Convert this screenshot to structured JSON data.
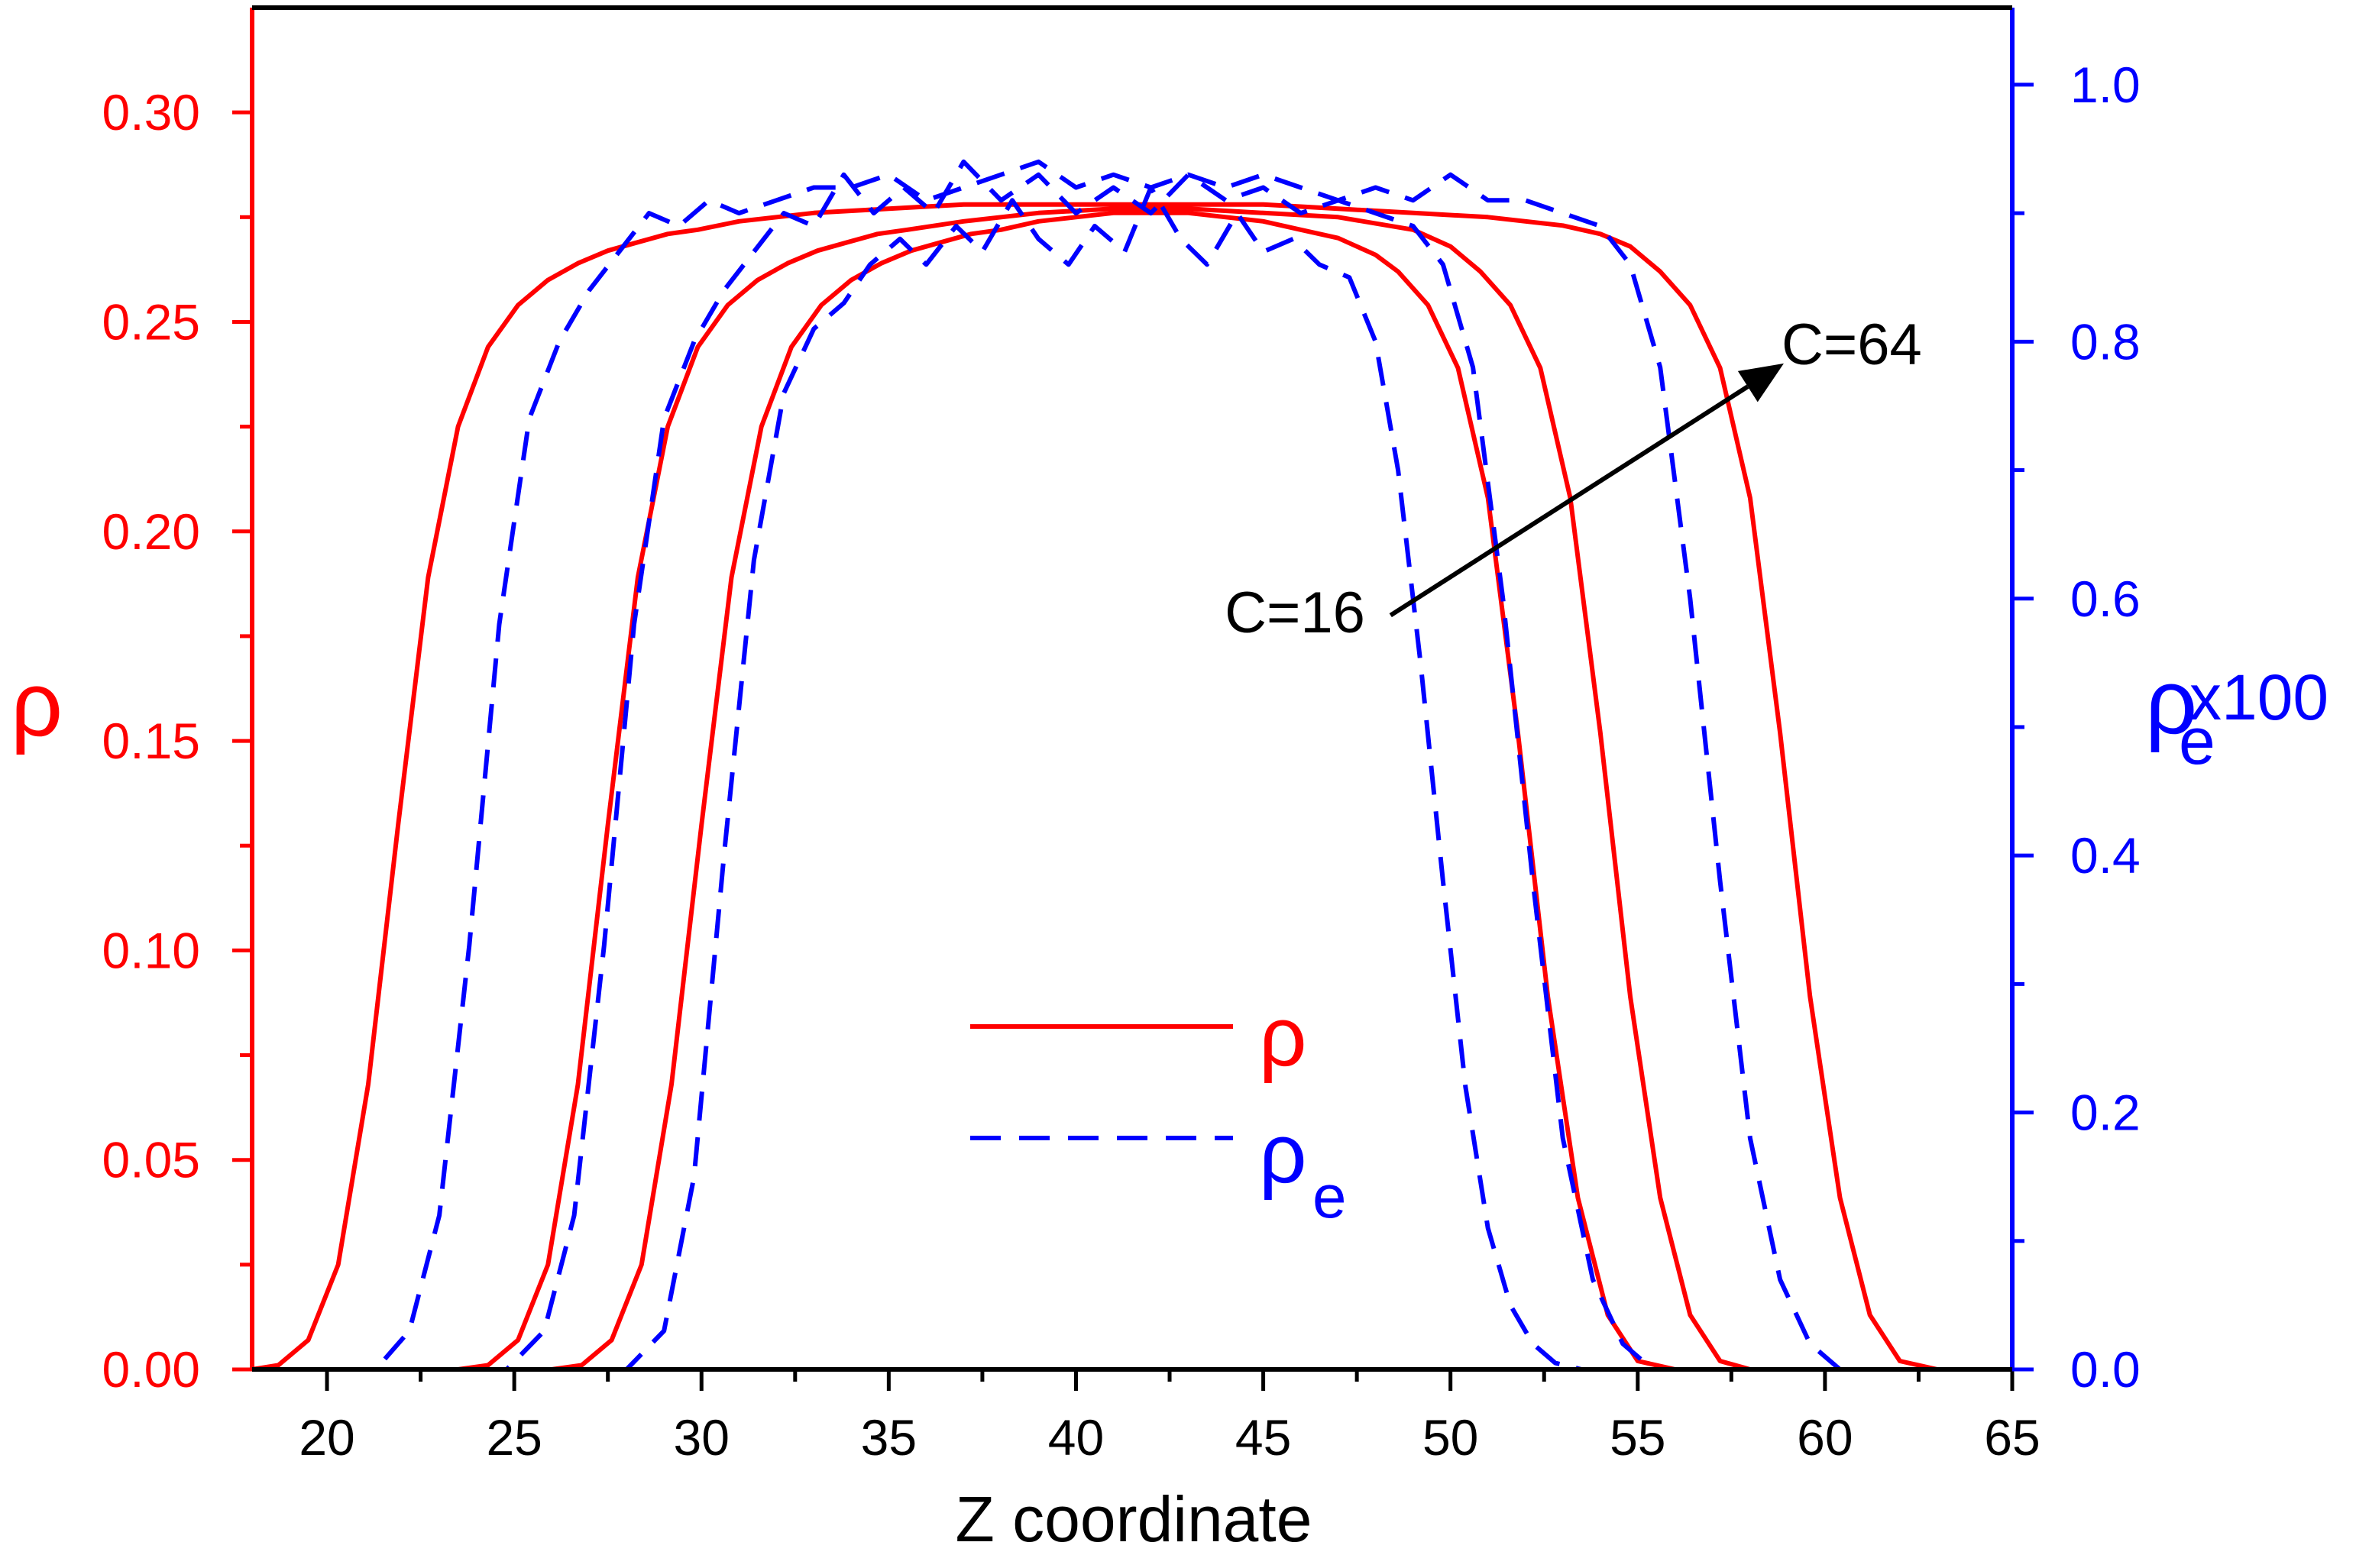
{
  "chart_data": {
    "type": "line",
    "title": "",
    "xlabel": "Z coordinate",
    "ylabel_left": "ρ",
    "ylabel_right_main": "ρ",
    "ylabel_right_sub": "e",
    "ylabel_right_suffix": "x100",
    "xlim": [
      18,
      65
    ],
    "ylim_left": [
      0,
      0.325
    ],
    "ylim_right": [
      0,
      1.06
    ],
    "x_ticks": [
      20,
      25,
      30,
      35,
      40,
      45,
      50,
      55,
      60,
      65
    ],
    "y_left_ticks": [
      0.0,
      0.05,
      0.1,
      0.15,
      0.2,
      0.25,
      0.3
    ],
    "y_left_tick_labels": [
      "0.00",
      "0.05",
      "0.10",
      "0.15",
      "0.20",
      "0.25",
      "0.30"
    ],
    "y_right_ticks": [
      0.0,
      0.2,
      0.4,
      0.6,
      0.8,
      1.0
    ],
    "y_right_tick_labels": [
      "0.0",
      "0.2",
      "0.4",
      "0.6",
      "0.8",
      "1.0"
    ],
    "colors": {
      "rho": "#ff0000",
      "rho_e": "#0000ff",
      "text": "#000000"
    },
    "legend": {
      "position": "bottom-center",
      "entries": [
        {
          "label": "ρ",
          "sub": "",
          "style": "solid",
          "color": "#ff0000"
        },
        {
          "label": "ρ",
          "sub": "e",
          "style": "dashed",
          "color": "#0000ff"
        }
      ]
    },
    "annotation": {
      "start_label": "C=16",
      "end_label": "C=64",
      "start": [
        48.4,
        0.587
      ],
      "end": [
        58.9,
        0.783
      ]
    },
    "series": [
      {
        "name": "ρ (C=16)",
        "axis": "left",
        "style": "solid",
        "color": "#ff0000",
        "x": [
          18,
          26,
          26.8,
          27.6,
          28.4,
          29.2,
          30,
          30.8,
          31.6,
          32.4,
          33.2,
          34,
          34.8,
          35.6,
          36.4,
          37.2,
          38,
          39,
          40,
          41,
          42,
          43,
          44,
          45,
          46,
          47,
          48,
          48.6,
          49.4,
          50.2,
          51,
          51.8,
          52.6,
          53.4,
          54.2,
          55,
          56,
          65
        ],
        "y": [
          0,
          0,
          0.001,
          0.007,
          0.025,
          0.068,
          0.13,
          0.189,
          0.225,
          0.244,
          0.254,
          0.26,
          0.264,
          0.267,
          0.269,
          0.271,
          0.272,
          0.274,
          0.275,
          0.276,
          0.276,
          0.276,
          0.275,
          0.274,
          0.272,
          0.27,
          0.266,
          0.262,
          0.254,
          0.239,
          0.208,
          0.152,
          0.089,
          0.041,
          0.013,
          0.002,
          0,
          0
        ]
      },
      {
        "name": "ρ (C=32)",
        "axis": "left",
        "style": "solid",
        "color": "#ff0000",
        "x": [
          18,
          23.5,
          24.3,
          25.1,
          25.9,
          26.7,
          27.5,
          28.3,
          29.1,
          29.9,
          30.7,
          31.5,
          32.3,
          33.1,
          33.9,
          34.7,
          35.5,
          37,
          39,
          41,
          43,
          45,
          47,
          49,
          50,
          50.8,
          51.6,
          52.4,
          53.2,
          54,
          54.8,
          55.6,
          56.4,
          57.2,
          58,
          59,
          65
        ],
        "y": [
          0,
          0,
          0.001,
          0.007,
          0.025,
          0.068,
          0.13,
          0.189,
          0.225,
          0.244,
          0.254,
          0.26,
          0.264,
          0.267,
          0.269,
          0.271,
          0.272,
          0.274,
          0.276,
          0.277,
          0.277,
          0.276,
          0.275,
          0.272,
          0.268,
          0.262,
          0.254,
          0.239,
          0.208,
          0.152,
          0.089,
          0.041,
          0.013,
          0.002,
          0,
          0,
          0
        ]
      },
      {
        "name": "ρ (C=64)",
        "axis": "left",
        "style": "solid",
        "color": "#ff0000",
        "x": [
          18,
          18.7,
          19.5,
          20.3,
          21.1,
          21.9,
          22.7,
          23.5,
          24.3,
          25.1,
          25.9,
          26.7,
          27.5,
          28.3,
          29.1,
          29.9,
          31,
          33,
          35,
          37,
          39,
          41,
          43,
          45,
          47,
          49,
          51,
          53,
          54,
          54.8,
          55.6,
          56.4,
          57.2,
          58,
          58.8,
          59.6,
          60.4,
          61.2,
          62,
          63,
          65
        ],
        "y": [
          0,
          0.001,
          0.007,
          0.025,
          0.068,
          0.13,
          0.189,
          0.225,
          0.244,
          0.254,
          0.26,
          0.264,
          0.267,
          0.269,
          0.271,
          0.272,
          0.274,
          0.276,
          0.277,
          0.278,
          0.278,
          0.278,
          0.278,
          0.278,
          0.277,
          0.276,
          0.275,
          0.273,
          0.271,
          0.268,
          0.262,
          0.254,
          0.239,
          0.208,
          0.152,
          0.089,
          0.041,
          0.013,
          0.002,
          0,
          0
        ]
      },
      {
        "name": "ρe (C=16)",
        "axis": "right",
        "style": "dashed",
        "color": "#0000ff",
        "x": [
          18,
          28,
          29,
          29.8,
          30.6,
          31.4,
          32.2,
          33,
          33.8,
          34.5,
          35.3,
          36,
          36.8,
          37.5,
          38.3,
          39,
          39.8,
          40.5,
          41.3,
          42,
          42.8,
          43.5,
          44.3,
          45,
          45.8,
          46.5,
          47.3,
          48,
          48.6,
          49.2,
          49.8,
          50.4,
          51,
          51.6,
          52.2,
          52.8,
          53.5,
          65
        ],
        "y": [
          0,
          0,
          0.03,
          0.15,
          0.4,
          0.63,
          0.76,
          0.81,
          0.83,
          0.86,
          0.88,
          0.86,
          0.89,
          0.87,
          0.91,
          0.88,
          0.86,
          0.89,
          0.87,
          0.92,
          0.88,
          0.86,
          0.9,
          0.87,
          0.88,
          0.86,
          0.85,
          0.8,
          0.7,
          0.55,
          0.38,
          0.22,
          0.11,
          0.05,
          0.02,
          0.005,
          0,
          0
        ]
      },
      {
        "name": "ρe (C=32)",
        "axis": "right",
        "style": "dashed",
        "color": "#0000ff",
        "x": [
          18,
          24.8,
          25.8,
          26.6,
          27.4,
          28.2,
          29,
          29.8,
          30.6,
          31.4,
          32.2,
          33,
          33.8,
          34.6,
          35.4,
          36.2,
          37,
          38,
          39,
          40,
          41,
          42,
          43,
          44,
          45,
          46,
          47,
          48,
          49,
          49.8,
          50.6,
          51.4,
          52.2,
          53,
          53.8,
          54.6,
          55.4,
          65
        ],
        "y": [
          0,
          0,
          0.03,
          0.12,
          0.33,
          0.58,
          0.74,
          0.8,
          0.84,
          0.87,
          0.9,
          0.89,
          0.93,
          0.9,
          0.92,
          0.9,
          0.94,
          0.91,
          0.93,
          0.9,
          0.92,
          0.9,
          0.93,
          0.91,
          0.92,
          0.9,
          0.91,
          0.9,
          0.89,
          0.86,
          0.78,
          0.6,
          0.38,
          0.18,
          0.07,
          0.02,
          0,
          0
        ]
      },
      {
        "name": "ρe (C=64)",
        "axis": "right",
        "style": "dashed",
        "color": "#0000ff",
        "x": [
          18,
          21.3,
          22.2,
          23,
          23.8,
          24.6,
          25.4,
          26.2,
          27,
          27.8,
          28.6,
          29.4,
          30.2,
          31,
          32,
          33,
          34,
          35,
          36,
          37,
          38,
          39,
          40,
          41,
          42,
          43,
          44,
          45,
          46,
          47,
          48,
          49,
          50,
          51,
          52,
          53,
          54,
          54.8,
          55.6,
          56.4,
          57.2,
          58,
          58.8,
          59.6,
          60.4,
          65
        ],
        "y": [
          0,
          0,
          0.03,
          0.12,
          0.33,
          0.58,
          0.74,
          0.8,
          0.84,
          0.87,
          0.9,
          0.89,
          0.91,
          0.9,
          0.91,
          0.92,
          0.92,
          0.93,
          0.91,
          0.92,
          0.93,
          0.94,
          0.92,
          0.93,
          0.92,
          0.93,
          0.92,
          0.93,
          0.92,
          0.91,
          0.92,
          0.91,
          0.93,
          0.91,
          0.91,
          0.9,
          0.89,
          0.86,
          0.78,
          0.6,
          0.38,
          0.18,
          0.07,
          0.02,
          0,
          0
        ]
      }
    ]
  }
}
